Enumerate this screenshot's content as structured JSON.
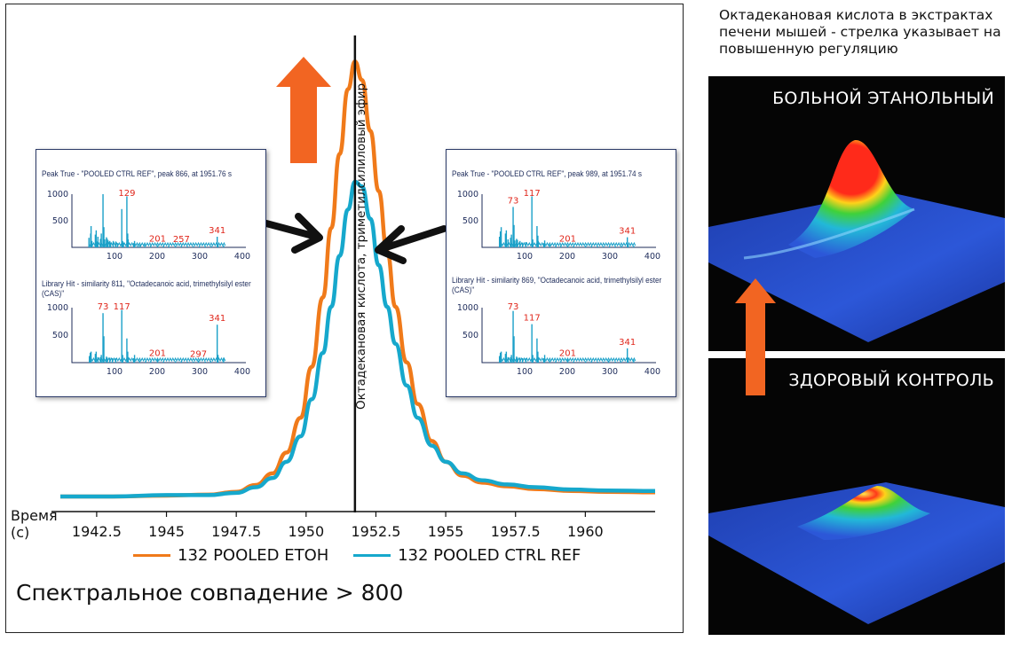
{
  "colors": {
    "etoh": "#f07a1a",
    "ctrl": "#16a8cc",
    "arrow": "#f26522",
    "spec": "#1aa0c8",
    "peak_label": "#e0261b"
  },
  "time_axis_label_line1": "Время",
  "time_axis_label_line2": "(с)",
  "vertical_peak_label": "Октадекановая кислота, триметилсилиловый эфир",
  "match_text": "Спектральное совпадение > 800",
  "right_caption": "Октадекановая кислота в экстрактах печени мышей - стрелка указывает на повышенную регуляцию",
  "panels": {
    "disease_label": "БОЛЬНОЙ ЭТАНОЛЬНЫЙ",
    "healthy_label": "ЗДОРОВЫЙ КОНТРОЛЬ"
  },
  "insets": [
    {
      "peak_title": "Peak True - \"POOLED CTRL REF\", peak 866, at 1951.76 s",
      "library_title": "Library Hit - similarity 811, \"Octadecanoic acid, trimethylsilyl ester (CAS)\"",
      "peak_spectrum": {
        "ylim": [
          0,
          1000
        ],
        "xlim": [
          0,
          400
        ],
        "yticks": [
          "1000",
          "500"
        ],
        "xticks": [
          "100",
          "200",
          "300",
          "400"
        ],
        "labels": [
          {
            "mz": 129,
            "text": "129"
          },
          {
            "mz": 201,
            "text": "201"
          },
          {
            "mz": 257,
            "text": "257"
          },
          {
            "mz": 341,
            "text": "341"
          }
        ],
        "bars": [
          [
            40,
            180
          ],
          [
            44,
            260
          ],
          [
            45,
            400
          ],
          [
            47,
            120
          ],
          [
            55,
            240
          ],
          [
            57,
            320
          ],
          [
            59,
            110
          ],
          [
            61,
            200
          ],
          [
            67,
            160
          ],
          [
            69,
            260
          ],
          [
            73,
            1000
          ],
          [
            75,
            380
          ],
          [
            77,
            150
          ],
          [
            81,
            190
          ],
          [
            83,
            160
          ],
          [
            85,
            130
          ],
          [
            89,
            120
          ],
          [
            91,
            90
          ],
          [
            97,
            120
          ],
          [
            103,
            110
          ],
          [
            107,
            80
          ],
          [
            117,
            720
          ],
          [
            119,
            120
          ],
          [
            121,
            90
          ],
          [
            129,
            960
          ],
          [
            131,
            260
          ],
          [
            132,
            150
          ],
          [
            145,
            80
          ],
          [
            147,
            120
          ],
          [
            155,
            60
          ],
          [
            160,
            50
          ],
          [
            171,
            50
          ],
          [
            185,
            40
          ],
          [
            201,
            40
          ],
          [
            215,
            35
          ],
          [
            227,
            30
          ],
          [
            243,
            30
          ],
          [
            257,
            30
          ],
          [
            271,
            25
          ],
          [
            285,
            25
          ],
          [
            299,
            25
          ],
          [
            313,
            25
          ],
          [
            327,
            30
          ],
          [
            341,
            200
          ],
          [
            343,
            60
          ],
          [
            356,
            35
          ]
        ]
      },
      "library_spectrum": {
        "ylim": [
          0,
          1000
        ],
        "xlim": [
          0,
          400
        ],
        "yticks": [
          "1000",
          "500"
        ],
        "xticks": [
          "100",
          "200",
          "300",
          "400"
        ],
        "labels": [
          {
            "mz": 73,
            "text": "73"
          },
          {
            "mz": 117,
            "text": "117"
          },
          {
            "mz": 201,
            "text": "201"
          },
          {
            "mz": 297,
            "text": "297"
          },
          {
            "mz": 341,
            "text": "341"
          }
        ],
        "bars": [
          [
            41,
            120
          ],
          [
            43,
            180
          ],
          [
            45,
            200
          ],
          [
            55,
            160
          ],
          [
            57,
            200
          ],
          [
            61,
            100
          ],
          [
            67,
            100
          ],
          [
            69,
            140
          ],
          [
            73,
            900
          ],
          [
            75,
            480
          ],
          [
            81,
            110
          ],
          [
            83,
            90
          ],
          [
            89,
            90
          ],
          [
            95,
            80
          ],
          [
            103,
            80
          ],
          [
            117,
            960
          ],
          [
            119,
            140
          ],
          [
            129,
            440
          ],
          [
            131,
            200
          ],
          [
            132,
            100
          ],
          [
            145,
            80
          ],
          [
            147,
            140
          ],
          [
            159,
            40
          ],
          [
            173,
            30
          ],
          [
            185,
            30
          ],
          [
            201,
            60
          ],
          [
            215,
            25
          ],
          [
            243,
            25
          ],
          [
            257,
            30
          ],
          [
            271,
            20
          ],
          [
            285,
            20
          ],
          [
            297,
            40
          ],
          [
            313,
            20
          ],
          [
            326,
            30
          ],
          [
            341,
            690
          ],
          [
            343,
            140
          ],
          [
            356,
            90
          ]
        ]
      }
    },
    {
      "peak_title": "Peak True - \"POOLED CTRL REF\", peak 989, at 1951.74 s",
      "library_title": "Library Hit - similarity 869, \"Octadecanoic acid, trimethylsilyl ester (CAS)\"",
      "peak_spectrum": {
        "ylim": [
          0,
          1000
        ],
        "xlim": [
          0,
          400
        ],
        "yticks": [
          "1000",
          "500"
        ],
        "xticks": [
          "100",
          "200",
          "300",
          "400"
        ],
        "labels": [
          {
            "mz": 73,
            "text": "73"
          },
          {
            "mz": 117,
            "text": "117"
          },
          {
            "mz": 201,
            "text": "201"
          },
          {
            "mz": 341,
            "text": "341"
          }
        ],
        "bars": [
          [
            41,
            200
          ],
          [
            43,
            300
          ],
          [
            45,
            380
          ],
          [
            55,
            260
          ],
          [
            57,
            320
          ],
          [
            61,
            150
          ],
          [
            67,
            180
          ],
          [
            69,
            240
          ],
          [
            73,
            760
          ],
          [
            75,
            420
          ],
          [
            77,
            130
          ],
          [
            81,
            160
          ],
          [
            83,
            140
          ],
          [
            89,
            120
          ],
          [
            95,
            90
          ],
          [
            103,
            100
          ],
          [
            117,
            960
          ],
          [
            119,
            150
          ],
          [
            129,
            400
          ],
          [
            131,
            220
          ],
          [
            132,
            120
          ],
          [
            145,
            80
          ],
          [
            147,
            130
          ],
          [
            159,
            50
          ],
          [
            173,
            40
          ],
          [
            185,
            40
          ],
          [
            201,
            40
          ],
          [
            215,
            30
          ],
          [
            243,
            30
          ],
          [
            257,
            30
          ],
          [
            271,
            25
          ],
          [
            285,
            25
          ],
          [
            299,
            25
          ],
          [
            313,
            25
          ],
          [
            327,
            35
          ],
          [
            341,
            190
          ],
          [
            343,
            50
          ],
          [
            356,
            30
          ]
        ]
      },
      "library_spectrum": {
        "ylim": [
          0,
          1000
        ],
        "xlim": [
          0,
          400
        ],
        "yticks": [
          "1000",
          "500"
        ],
        "xticks": [
          "100",
          "200",
          "300",
          "400"
        ],
        "labels": [
          {
            "mz": 73,
            "text": "73"
          },
          {
            "mz": 117,
            "text": "117"
          },
          {
            "mz": 201,
            "text": "201"
          },
          {
            "mz": 341,
            "text": "341"
          }
        ],
        "bars": [
          [
            41,
            120
          ],
          [
            43,
            180
          ],
          [
            45,
            200
          ],
          [
            55,
            160
          ],
          [
            57,
            200
          ],
          [
            61,
            100
          ],
          [
            67,
            100
          ],
          [
            69,
            140
          ],
          [
            73,
            940
          ],
          [
            75,
            480
          ],
          [
            81,
            110
          ],
          [
            83,
            90
          ],
          [
            89,
            90
          ],
          [
            95,
            80
          ],
          [
            103,
            80
          ],
          [
            117,
            700
          ],
          [
            119,
            140
          ],
          [
            129,
            440
          ],
          [
            131,
            200
          ],
          [
            132,
            100
          ],
          [
            145,
            80
          ],
          [
            147,
            140
          ],
          [
            159,
            40
          ],
          [
            173,
            30
          ],
          [
            185,
            30
          ],
          [
            201,
            60
          ],
          [
            215,
            25
          ],
          [
            243,
            25
          ],
          [
            257,
            30
          ],
          [
            271,
            20
          ],
          [
            285,
            20
          ],
          [
            297,
            40
          ],
          [
            313,
            20
          ],
          [
            326,
            30
          ],
          [
            341,
            260
          ],
          [
            343,
            90
          ],
          [
            356,
            50
          ]
        ]
      }
    }
  ],
  "chart_data": {
    "type": "line",
    "xlabel": "Время (с)",
    "ylabel": "",
    "xlim": [
      1941.2,
      1962.5
    ],
    "ylim": [
      0,
      100
    ],
    "x_ticks": [
      "1942.5",
      "1945",
      "1947.5",
      "1950",
      "1952.5",
      "1955",
      "1957.5",
      "1960"
    ],
    "x_tick_values": [
      1942.5,
      1945,
      1947.5,
      1950,
      1952.5,
      1955,
      1957.5,
      1960
    ],
    "peak_marker_x": 1951.75,
    "series": [
      {
        "name": "132 POOLED ETOH",
        "x": [
          1941.2,
          1943,
          1945,
          1946.5,
          1947.5,
          1948.2,
          1948.8,
          1949.3,
          1949.8,
          1950.2,
          1950.6,
          1950.9,
          1951.2,
          1951.5,
          1951.75,
          1952.0,
          1952.3,
          1952.6,
          1952.9,
          1953.2,
          1953.6,
          1954.0,
          1954.5,
          1955.0,
          1955.6,
          1956.3,
          1957.2,
          1958.2,
          1959.5,
          1960.8,
          1962.5
        ],
        "y": [
          0,
          0,
          0.2,
          0.4,
          1.0,
          2.5,
          5.0,
          9.5,
          17,
          28,
          43,
          58,
          74,
          88,
          94,
          90,
          79,
          66,
          53,
          41,
          29,
          20,
          12,
          7.5,
          4.5,
          3.0,
          2.2,
          1.6,
          1.2,
          1.0,
          0.9
        ]
      },
      {
        "name": "132 POOLED CTRL REF",
        "x": [
          1941.2,
          1943,
          1945,
          1946.5,
          1947.5,
          1948.2,
          1948.8,
          1949.3,
          1949.8,
          1950.2,
          1950.6,
          1950.9,
          1951.2,
          1951.5,
          1951.75,
          1952.0,
          1952.3,
          1952.6,
          1952.9,
          1953.2,
          1953.6,
          1954.0,
          1954.5,
          1955.0,
          1955.6,
          1956.3,
          1957.2,
          1958.2,
          1959.5,
          1960.8,
          1962.5
        ],
        "y": [
          0,
          0,
          0.3,
          0.3,
          0.8,
          2.0,
          4.0,
          7.5,
          13,
          21,
          31,
          41,
          52,
          62,
          68,
          67,
          60,
          50,
          41,
          33,
          24,
          17,
          11,
          7.5,
          5.0,
          3.5,
          2.6,
          2.0,
          1.5,
          1.3,
          1.2
        ]
      }
    ],
    "legend": "bottom",
    "grid": false
  }
}
